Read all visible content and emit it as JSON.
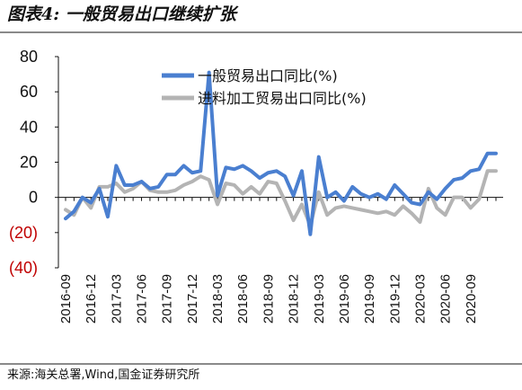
{
  "title": "图表4:  一般贸易出口继续扩张",
  "source": "来源:海关总署,Wind,国金证券研究所",
  "colors": {
    "series1": "#4a7fd0",
    "series2": "#b4b4b4",
    "negative": "#c00000",
    "axis": "#111111"
  },
  "chart_data": {
    "type": "line",
    "ylim": [
      -40,
      80
    ],
    "yticks": [
      {
        "value": 80,
        "label": "80"
      },
      {
        "value": 60,
        "label": "60"
      },
      {
        "value": 40,
        "label": "40"
      },
      {
        "value": 20,
        "label": "20"
      },
      {
        "value": 0,
        "label": "0"
      },
      {
        "value": -20,
        "label": "(20)"
      },
      {
        "value": -40,
        "label": "(40)"
      }
    ],
    "grid": false,
    "legend_position": "top-center",
    "x": [
      "2016-09",
      "2016-10",
      "2016-11",
      "2016-12",
      "2017-01",
      "2017-02",
      "2017-03",
      "2017-04",
      "2017-05",
      "2017-06",
      "2017-07",
      "2017-08",
      "2017-09",
      "2017-10",
      "2017-11",
      "2017-12",
      "2018-01",
      "2018-02",
      "2018-03",
      "2018-04",
      "2018-05",
      "2018-06",
      "2018-07",
      "2018-08",
      "2018-09",
      "2018-10",
      "2018-11",
      "2018-12",
      "2019-01",
      "2019-02",
      "2019-03",
      "2019-04",
      "2019-05",
      "2019-06",
      "2019-07",
      "2019-08",
      "2019-09",
      "2019-10",
      "2019-11",
      "2019-12",
      "2020-01",
      "2020-02",
      "2020-03",
      "2020-04",
      "2020-05",
      "2020-06",
      "2020-07",
      "2020-08",
      "2020-09",
      "2020-10",
      "2020-11",
      "2020-12"
    ],
    "xtick_labels": [
      "2016-09",
      "2016-12",
      "2017-03",
      "2017-06",
      "2017-09",
      "2017-12",
      "2018-03",
      "2018-06",
      "2018-09",
      "2018-12",
      "2019-03",
      "2019-06",
      "2019-09",
      "2019-12",
      "2020-03",
      "2020-06",
      "2020-09"
    ],
    "series": [
      {
        "name": "一般贸易出口同比(%)",
        "values": [
          -12,
          -8,
          0,
          -3,
          5,
          -11,
          18,
          7,
          7,
          9,
          5,
          6,
          13,
          13,
          18,
          14,
          15,
          71,
          1,
          17,
          16,
          18,
          15,
          11,
          14,
          15,
          12,
          1,
          15,
          -21,
          23,
          0,
          3,
          -2,
          6,
          2,
          0,
          2,
          -1,
          7,
          2,
          -3,
          -4,
          3,
          -1,
          5,
          10,
          11,
          15,
          16,
          25,
          25
        ]
      },
      {
        "name": "进料加工贸易出口同比(%)",
        "values": [
          -7,
          -10,
          0,
          -6,
          6,
          6,
          8,
          3,
          5,
          9,
          4,
          3,
          3,
          4,
          7,
          9,
          12,
          10,
          -4,
          8,
          7,
          2,
          6,
          2,
          9,
          8,
          -2,
          -13,
          -4,
          -16,
          3,
          -10,
          -6,
          -5,
          -6,
          -7,
          -8,
          -9,
          -8,
          -10,
          -5,
          -9,
          -14,
          5,
          -6,
          -10,
          0,
          0,
          -6,
          -1,
          15,
          15
        ]
      }
    ]
  }
}
